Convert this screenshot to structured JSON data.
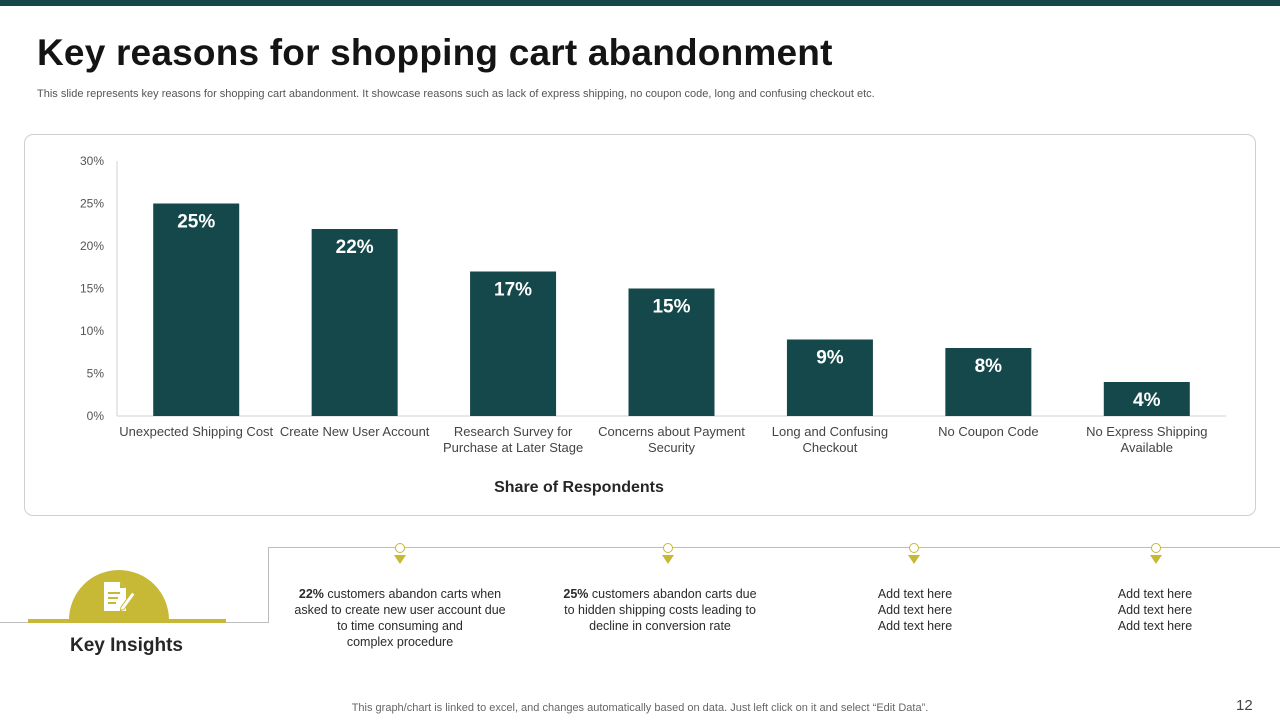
{
  "slide": {
    "title": "Key reasons for shopping cart abandonment",
    "subtitle": "This slide represents key reasons for shopping cart abandonment. It showcase reasons such as lack of express shipping, no coupon code, long and confusing checkout etc.",
    "footer_note": "This graph/chart is linked to excel,  and changes automatically based on data. Just left click on it and select “Edit Data”.",
    "page_number": "12"
  },
  "colors": {
    "accent_dark": "#15484a",
    "accent_gold": "#c7b836"
  },
  "chart_data": {
    "type": "bar",
    "title": "",
    "xlabel": "Share of Respondents",
    "ylabel": "",
    "categories": [
      "Unexpected Shipping Cost",
      "Create New User Account",
      "Research Survey for Purchase at Later Stage",
      "Concerns about Payment Security",
      "Long and Confusing Checkout",
      "No Coupon Code",
      "No Express Shipping Available"
    ],
    "category_lines": [
      [
        "Unexpected Shipping Cost"
      ],
      [
        "Create New User Account"
      ],
      [
        "Research Survey for",
        "Purchase at Later Stage"
      ],
      [
        "Concerns about Payment",
        "Security"
      ],
      [
        "Long and Confusing",
        "Checkout"
      ],
      [
        "No Coupon Code"
      ],
      [
        "No Express Shipping",
        "Available"
      ]
    ],
    "values": [
      25,
      22,
      17,
      15,
      9,
      8,
      4
    ],
    "data_labels": [
      "25%",
      "22%",
      "17%",
      "15%",
      "9%",
      "8%",
      "4%"
    ],
    "yticks": [
      "0%",
      "5%",
      "10%",
      "15%",
      "20%",
      "25%",
      "30%"
    ],
    "ylim": [
      0,
      30
    ],
    "grid": false,
    "legend": "none",
    "bar_color": "#15484a"
  },
  "insights": {
    "label": "Key Insights",
    "icon": "document-pencil-icon",
    "items": [
      {
        "lines": [
          [
            "22%",
            " customers abandon carts when"
          ],
          [
            "",
            "asked to create new user account due"
          ],
          [
            "",
            "to time consuming and"
          ],
          [
            "",
            "complex procedure"
          ]
        ]
      },
      {
        "lines": [
          [
            "25%",
            " customers abandon carts due"
          ],
          [
            "",
            "to hidden shipping costs leading to"
          ],
          [
            "",
            "decline in conversion rate"
          ]
        ]
      },
      {
        "lines": [
          [
            "",
            "Add text here"
          ],
          [
            "",
            "Add text here"
          ],
          [
            "",
            "Add text here"
          ]
        ]
      },
      {
        "lines": [
          [
            "",
            "Add text here"
          ],
          [
            "",
            "Add text here"
          ],
          [
            "",
            "Add text here"
          ]
        ]
      }
    ]
  }
}
